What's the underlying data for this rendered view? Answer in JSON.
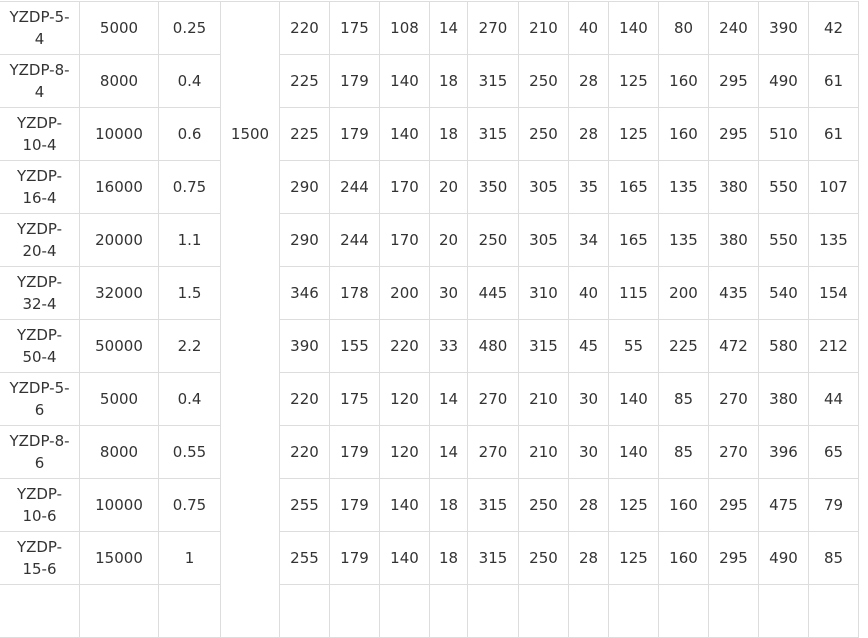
{
  "speed_value": "1500",
  "rows": [
    [
      "YZDP-5-4",
      "5000",
      "0.25",
      "220",
      "175",
      "108",
      "14",
      "270",
      "210",
      "40",
      "140",
      "80",
      "240",
      "390",
      "42"
    ],
    [
      "YZDP-8-4",
      "8000",
      "0.4",
      "225",
      "179",
      "140",
      "18",
      "315",
      "250",
      "28",
      "125",
      "160",
      "295",
      "490",
      "61"
    ],
    [
      "YZDP-10-4",
      "10000",
      "0.6",
      "225",
      "179",
      "140",
      "18",
      "315",
      "250",
      "28",
      "125",
      "160",
      "295",
      "510",
      "61"
    ],
    [
      "YZDP-16-4",
      "16000",
      "0.75",
      "290",
      "244",
      "170",
      "20",
      "350",
      "305",
      "35",
      "165",
      "135",
      "380",
      "550",
      "107"
    ],
    [
      "YZDP-20-4",
      "20000",
      "1.1",
      "290",
      "244",
      "170",
      "20",
      "250",
      "305",
      "34",
      "165",
      "135",
      "380",
      "550",
      "135"
    ],
    [
      "YZDP-32-4",
      "32000",
      "1.5",
      "346",
      "178",
      "200",
      "30",
      "445",
      "310",
      "40",
      "115",
      "200",
      "435",
      "540",
      "154"
    ],
    [
      "YZDP-50-4",
      "50000",
      "2.2",
      "390",
      "155",
      "220",
      "33",
      "480",
      "315",
      "45",
      "55",
      "225",
      "472",
      "580",
      "212"
    ],
    [
      "YZDP-5-6",
      "5000",
      "0.4",
      "220",
      "175",
      "120",
      "14",
      "270",
      "210",
      "30",
      "140",
      "85",
      "270",
      "380",
      "44"
    ],
    [
      "YZDP-8-6",
      "8000",
      "0.55",
      "220",
      "179",
      "120",
      "14",
      "270",
      "210",
      "30",
      "140",
      "85",
      "270",
      "396",
      "65"
    ],
    [
      "YZDP-10-6",
      "10000",
      "0.75",
      "255",
      "179",
      "140",
      "18",
      "315",
      "250",
      "28",
      "125",
      "160",
      "295",
      "475",
      "79"
    ],
    [
      "YZDP-15-6",
      "15000",
      "1",
      "255",
      "179",
      "140",
      "18",
      "315",
      "250",
      "28",
      "125",
      "160",
      "295",
      "490",
      "85"
    ]
  ]
}
